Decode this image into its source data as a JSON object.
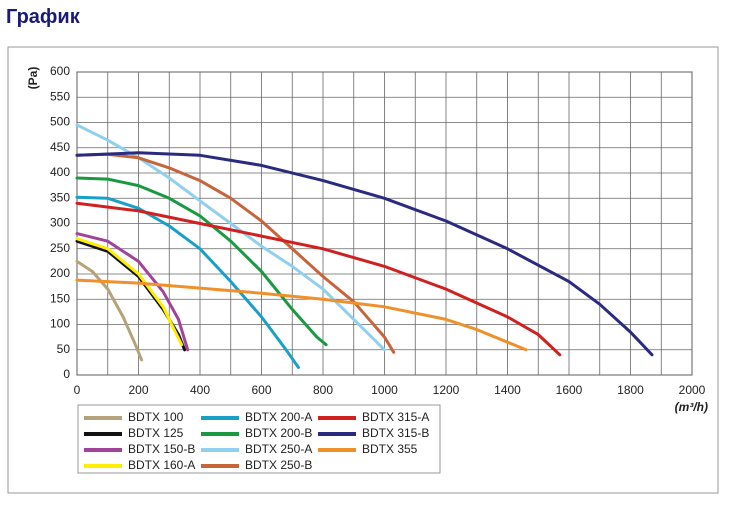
{
  "header": {
    "title": "График"
  },
  "chart_data": {
    "type": "line",
    "x_label": "(m³/h)",
    "y_label": "(Pa)",
    "xlim": [
      0,
      2000
    ],
    "ylim": [
      0,
      600
    ],
    "xticks": [
      0,
      200,
      400,
      600,
      800,
      1000,
      1200,
      1400,
      1600,
      1800,
      2000
    ],
    "yticks": [
      0,
      50,
      100,
      150,
      200,
      250,
      300,
      350,
      400,
      450,
      500,
      550,
      600
    ],
    "grid": true,
    "series": [
      {
        "name": "BDTX 100",
        "color": "#b5a27a",
        "x": [
          0,
          50,
          100,
          150,
          190,
          210
        ],
        "values": [
          225,
          205,
          170,
          115,
          60,
          30
        ]
      },
      {
        "name": "BDTX 125",
        "color": "#111111",
        "x": [
          0,
          100,
          200,
          280,
          330,
          350
        ],
        "values": [
          265,
          245,
          195,
          130,
          80,
          50
        ]
      },
      {
        "name": "BDTX 150-B",
        "color": "#a0449a",
        "x": [
          0,
          100,
          200,
          280,
          330,
          360
        ],
        "values": [
          280,
          265,
          225,
          165,
          110,
          50
        ]
      },
      {
        "name": "BDTX 160-A",
        "color": "#ffee00",
        "x": [
          0,
          100,
          200,
          280,
          320,
          340
        ],
        "values": [
          270,
          250,
          200,
          135,
          85,
          60
        ]
      },
      {
        "name": "BDTX 200-A",
        "color": "#1aa0c8",
        "x": [
          0,
          100,
          200,
          300,
          400,
          500,
          600,
          680,
          720
        ],
        "values": [
          352,
          350,
          330,
          295,
          250,
          185,
          115,
          50,
          15
        ]
      },
      {
        "name": "BDTX 200-B",
        "color": "#1a9a40",
        "x": [
          0,
          100,
          200,
          300,
          400,
          500,
          600,
          700,
          780,
          810
        ],
        "values": [
          390,
          388,
          375,
          350,
          315,
          265,
          205,
          130,
          75,
          60
        ]
      },
      {
        "name": "BDTX 250-A",
        "color": "#8fd0ef",
        "x": [
          0,
          100,
          200,
          300,
          400,
          500,
          600,
          700,
          800,
          900,
          950,
          1000
        ],
        "values": [
          495,
          465,
          430,
          390,
          345,
          300,
          255,
          215,
          170,
          110,
          80,
          50
        ]
      },
      {
        "name": "BDTX 250-B",
        "color": "#c8643a",
        "x": [
          0,
          100,
          200,
          300,
          400,
          500,
          600,
          700,
          800,
          900,
          1000,
          1030
        ],
        "values": [
          435,
          437,
          430,
          410,
          385,
          350,
          305,
          250,
          195,
          145,
          75,
          45
        ]
      },
      {
        "name": "BDTX 315-A",
        "color": "#d02020",
        "x": [
          0,
          200,
          400,
          600,
          800,
          1000,
          1200,
          1400,
          1500,
          1570
        ],
        "values": [
          340,
          325,
          300,
          275,
          250,
          215,
          170,
          115,
          80,
          40
        ]
      },
      {
        "name": "BDTX 315-B",
        "color": "#2a2a80",
        "x": [
          0,
          200,
          400,
          600,
          800,
          1000,
          1200,
          1400,
          1600,
          1700,
          1800,
          1870
        ],
        "values": [
          435,
          440,
          435,
          415,
          385,
          350,
          305,
          250,
          185,
          140,
          85,
          40
        ]
      },
      {
        "name": "BDTX 355",
        "color": "#f0902a",
        "x": [
          0,
          200,
          400,
          600,
          800,
          1000,
          1200,
          1300,
          1400,
          1460
        ],
        "values": [
          188,
          182,
          172,
          162,
          150,
          135,
          110,
          90,
          65,
          50
        ]
      }
    ]
  }
}
